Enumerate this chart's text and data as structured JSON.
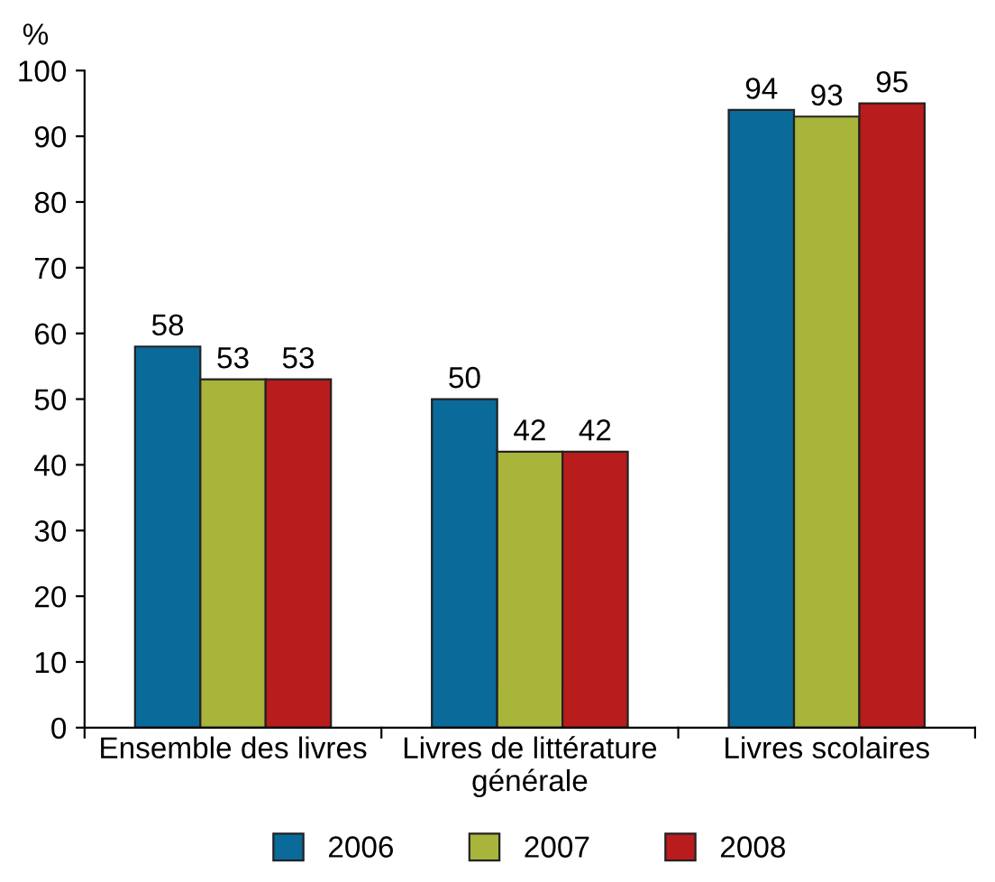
{
  "chart_data": {
    "type": "bar",
    "ylabel": "%",
    "categories": [
      "Ensemble des livres",
      "Livres de littérature\ngénérale",
      "Livres scolaires"
    ],
    "series": [
      {
        "name": "2006",
        "color": "#0a6a9a",
        "values": [
          58,
          50,
          94
        ]
      },
      {
        "name": "2007",
        "color": "#a8b43a",
        "values": [
          53,
          42,
          93
        ]
      },
      {
        "name": "2008",
        "color": "#b81c1c",
        "values": [
          53,
          42,
          95
        ]
      }
    ],
    "ylim": [
      0,
      100
    ],
    "yticks": [
      0,
      10,
      20,
      30,
      40,
      50,
      60,
      70,
      80,
      90,
      100
    ],
    "data_labels": true,
    "grid": false,
    "legend": "bottom"
  }
}
